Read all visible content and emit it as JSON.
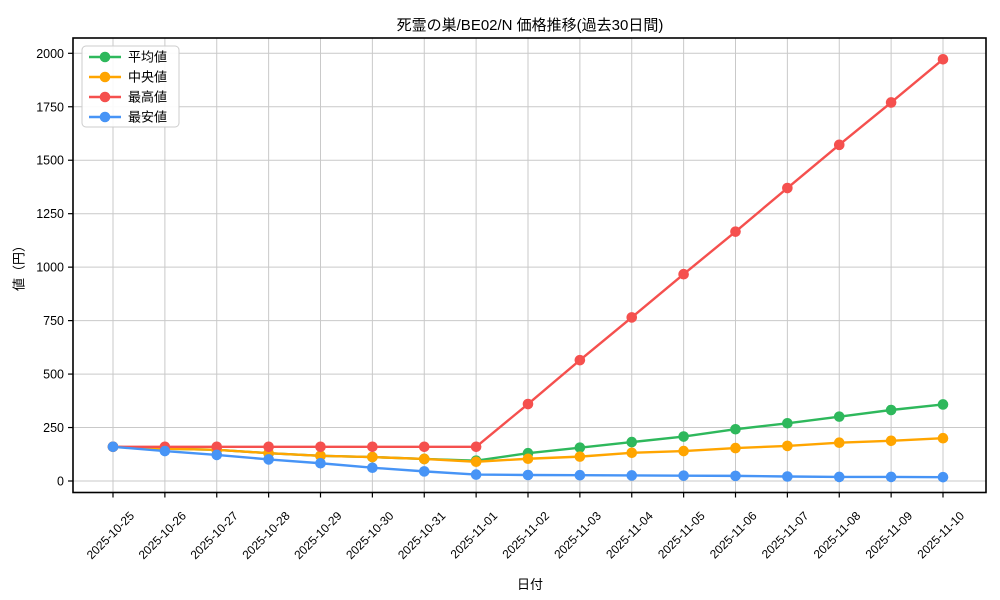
{
  "figure": {
    "background": "#ffffff",
    "grid_color": "#c9c9c9",
    "spine_color": "#000000",
    "legend_border_color": "#cccccc"
  },
  "chart_data": {
    "type": "line",
    "title": "死霊の巣/BE02/N 価格推移(過去30日間)",
    "xlabel": "日付",
    "ylabel": "値（円）",
    "x": [
      "2025-10-25",
      "2025-10-26",
      "2025-10-27",
      "2025-10-28",
      "2025-10-29",
      "2025-10-30",
      "2025-10-31",
      "2025-11-01",
      "2025-11-02",
      "2025-11-03",
      "2025-11-04",
      "2025-11-05",
      "2025-11-06",
      "2025-11-07",
      "2025-11-08",
      "2025-11-09",
      "2025-11-10"
    ],
    "series": [
      {
        "name": "平均値",
        "color": "#2eb85c",
        "values": [
          160,
          151,
          146,
          130,
          118,
          112,
          103,
          95,
          130,
          156,
          182,
          208,
          242,
          270,
          301,
          332,
          358
        ]
      },
      {
        "name": "中央値",
        "color": "#ffa500",
        "values": [
          160,
          151,
          146,
          130,
          118,
          112,
          103,
          90,
          104,
          114,
          132,
          140,
          154,
          164,
          179,
          188,
          200
        ]
      },
      {
        "name": "最高値",
        "color": "#f5504e",
        "values": [
          160,
          160,
          160,
          160,
          160,
          160,
          160,
          160,
          360,
          565,
          765,
          967,
          1166,
          1370,
          1572,
          1770,
          1972
        ]
      },
      {
        "name": "最安値",
        "color": "#4794f6",
        "values": [
          160,
          140,
          122,
          101,
          83,
          62,
          45,
          30,
          28,
          27,
          26,
          25,
          24,
          21,
          19,
          19,
          18
        ]
      }
    ],
    "yticks": [
      0,
      250,
      500,
      750,
      1000,
      1250,
      1500,
      1750,
      2000
    ],
    "ylim": [
      -55,
      2075
    ],
    "grid": true,
    "legend_position": "upper left"
  }
}
